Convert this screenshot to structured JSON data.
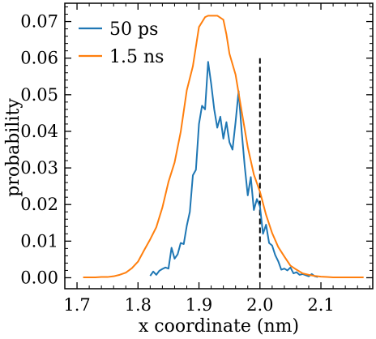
{
  "chart_data": {
    "type": "line",
    "xlabel": "x coordinate (nm)",
    "ylabel": "probability",
    "xlim": [
      1.68,
      2.185
    ],
    "ylim": [
      -0.003,
      0.075
    ],
    "x_ticks": [
      1.7,
      1.8,
      1.9,
      2.0,
      2.1
    ],
    "x_tick_labels": [
      "1.7",
      "1.8",
      "1.9",
      "2.0",
      "2.1"
    ],
    "y_ticks": [
      0.0,
      0.01,
      0.02,
      0.03,
      0.04,
      0.05,
      0.06,
      0.07
    ],
    "y_tick_labels": [
      "0.00",
      "0.01",
      "0.02",
      "0.03",
      "0.04",
      "0.05",
      "0.06",
      "0.07"
    ],
    "legend_position": "top-left",
    "grid": false,
    "series": [
      {
        "name": "50 ps",
        "color": "#1f77b4",
        "x": [
          1.82,
          1.825,
          1.83,
          1.835,
          1.84,
          1.845,
          1.85,
          1.855,
          1.86,
          1.865,
          1.87,
          1.875,
          1.88,
          1.885,
          1.89,
          1.895,
          1.9,
          1.905,
          1.91,
          1.915,
          1.92,
          1.925,
          1.93,
          1.935,
          1.94,
          1.945,
          1.95,
          1.955,
          1.96,
          1.965,
          1.97,
          1.975,
          1.98,
          1.985,
          1.99,
          1.995,
          2.0,
          2.005,
          2.01,
          2.015,
          2.02,
          2.025,
          2.03,
          2.035,
          2.04,
          2.045,
          2.05,
          2.055,
          2.06,
          2.065,
          2.07,
          2.075,
          2.08,
          2.085,
          2.09,
          2.095
        ],
        "y": [
          0.0005,
          0.0017,
          0.0008,
          0.0019,
          0.0024,
          0.0028,
          0.0025,
          0.0082,
          0.0052,
          0.0064,
          0.0095,
          0.0092,
          0.0142,
          0.018,
          0.028,
          0.0295,
          0.042,
          0.047,
          0.046,
          0.059,
          0.053,
          0.046,
          0.041,
          0.044,
          0.038,
          0.0425,
          0.037,
          0.035,
          0.0425,
          0.051,
          0.04,
          0.0305,
          0.0225,
          0.0275,
          0.0185,
          0.0215,
          0.0195,
          0.012,
          0.0145,
          0.0095,
          0.0088,
          0.0062,
          0.0045,
          0.0022,
          0.0025,
          0.002,
          0.0028,
          0.0012,
          0.0015,
          0.0008,
          0.001,
          0.0007,
          0.0004,
          0.001,
          0.0004,
          0.0002
        ]
      },
      {
        "name": "1.5 ns",
        "color": "#ff7f0e",
        "x": [
          1.71,
          1.72,
          1.73,
          1.74,
          1.75,
          1.76,
          1.77,
          1.78,
          1.79,
          1.8,
          1.81,
          1.82,
          1.83,
          1.84,
          1.85,
          1.86,
          1.87,
          1.88,
          1.89,
          1.9,
          1.91,
          1.915,
          1.92,
          1.93,
          1.94,
          1.945,
          1.95,
          1.96,
          1.97,
          1.98,
          1.99,
          2.0,
          2.01,
          2.02,
          2.03,
          2.04,
          2.05,
          2.06,
          2.07,
          2.08,
          2.09,
          2.1,
          2.11,
          2.12,
          2.13,
          2.14,
          2.15,
          2.16,
          2.17
        ],
        "y": [
          0.0001,
          0.0001,
          0.0001,
          0.0002,
          0.0002,
          0.0004,
          0.0008,
          0.0014,
          0.0026,
          0.0044,
          0.0075,
          0.0105,
          0.0138,
          0.0192,
          0.0262,
          0.0315,
          0.0398,
          0.0512,
          0.0578,
          0.0685,
          0.0712,
          0.0716,
          0.0716,
          0.0716,
          0.0705,
          0.0665,
          0.0612,
          0.0555,
          0.0455,
          0.0357,
          0.0282,
          0.0235,
          0.0172,
          0.0122,
          0.0084,
          0.0058,
          0.0033,
          0.0022,
          0.0012,
          0.0008,
          0.0005,
          0.0003,
          0.0002,
          0.0001,
          0.0001,
          0.0001,
          0.0001,
          0.0001,
          0.0001
        ]
      }
    ],
    "annotations": [
      {
        "type": "vline",
        "x": 2.0,
        "y_range": [
          0.0,
          0.06
        ],
        "style": "dashed",
        "color": "#000000"
      }
    ]
  }
}
